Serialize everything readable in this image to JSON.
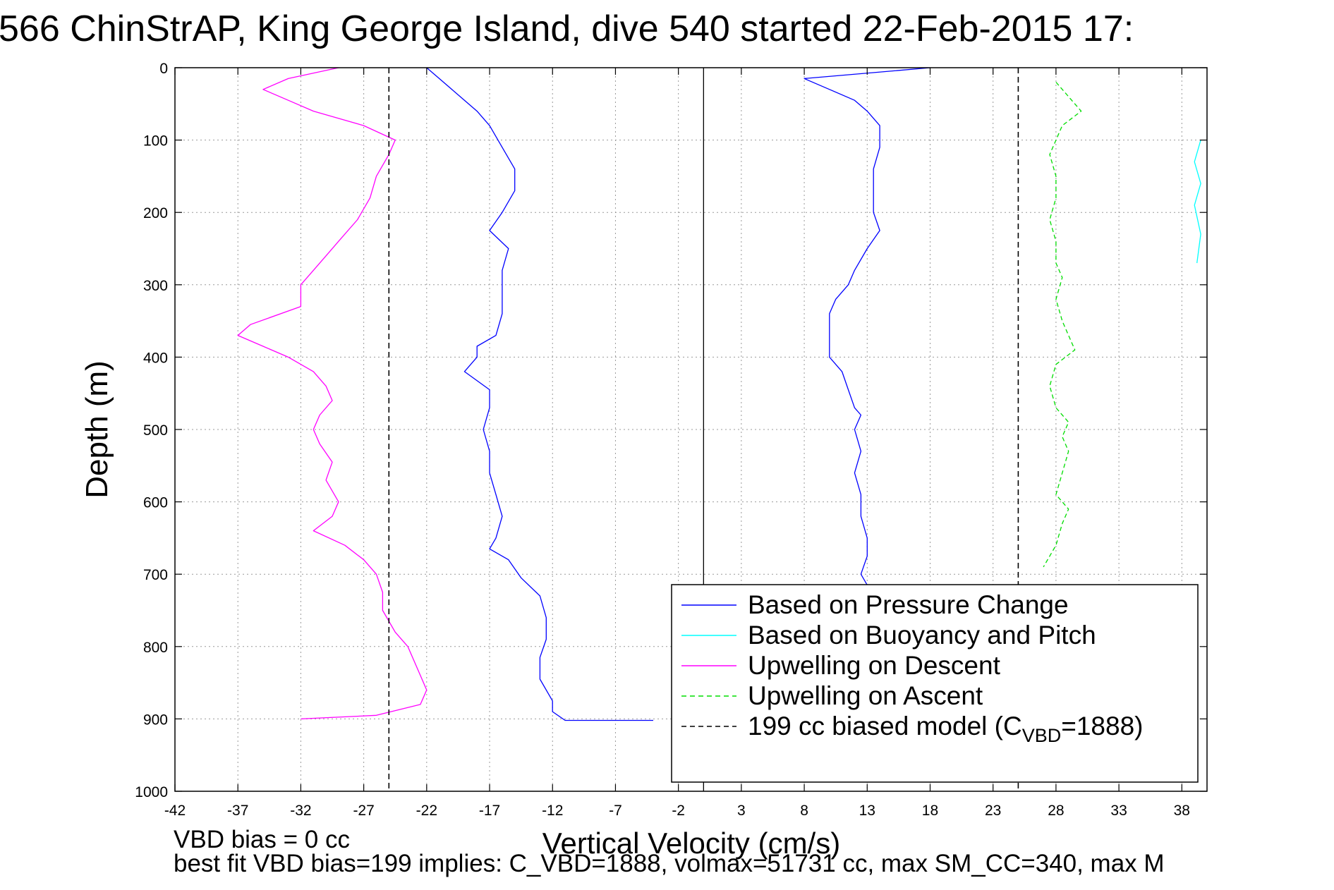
{
  "chart_data": {
    "type": "line",
    "title": "566 ChinStrAP, King George Island, dive 540 started 22-Feb-2015 17:",
    "xlabel": "Vertical Velocity (cm/s)",
    "ylabel": "Depth (m)",
    "xlim": [
      -42,
      40
    ],
    "ylim": [
      0,
      1000
    ],
    "y_inverted": true,
    "grid": true,
    "xticks": [
      "-42",
      "-37",
      "-32",
      "-27",
      "-22",
      "-17",
      "-12",
      "-7",
      "-2",
      "3",
      "8",
      "13",
      "18",
      "23",
      "28",
      "33",
      "38"
    ],
    "yticks": [
      "0",
      "100",
      "200",
      "300",
      "400",
      "500",
      "600",
      "700",
      "800",
      "900",
      "1000"
    ],
    "legend_position": "bottom-right",
    "series": [
      {
        "name": "Based on Pressure Change",
        "color": "#0000ff",
        "style": "solid",
        "points": [
          [
            -22,
            0
          ],
          [
            -21,
            15
          ],
          [
            -20,
            30
          ],
          [
            -19,
            45
          ],
          [
            -18,
            60
          ],
          [
            -17,
            80
          ],
          [
            -16,
            110
          ],
          [
            -15,
            140
          ],
          [
            -15,
            170
          ],
          [
            -16,
            200
          ],
          [
            -17,
            225
          ],
          [
            -15.5,
            250
          ],
          [
            -16,
            280
          ],
          [
            -16,
            310
          ],
          [
            -16,
            340
          ],
          [
            -16.5,
            370
          ],
          [
            -18,
            385
          ],
          [
            -18,
            400
          ],
          [
            -19,
            420
          ],
          [
            -17,
            445
          ],
          [
            -17,
            470
          ],
          [
            -17.5,
            500
          ],
          [
            -17,
            530
          ],
          [
            -17,
            560
          ],
          [
            -16.5,
            590
          ],
          [
            -16,
            620
          ],
          [
            -16.5,
            650
          ],
          [
            -17,
            665
          ],
          [
            -15.5,
            680
          ],
          [
            -14.5,
            705
          ],
          [
            -13,
            730
          ],
          [
            -12.5,
            760
          ],
          [
            -12.5,
            790
          ],
          [
            -13,
            815
          ],
          [
            -13,
            845
          ],
          [
            -12,
            875
          ],
          [
            -12,
            890
          ],
          [
            -11,
            902
          ],
          [
            -4,
            902
          ]
        ]
      },
      {
        "name": "Based on Pressure Change",
        "color": "#0000ff",
        "style": "solid",
        "points": [
          [
            18,
            0
          ],
          [
            8,
            15
          ],
          [
            10,
            30
          ],
          [
            12,
            45
          ],
          [
            13,
            60
          ],
          [
            14,
            80
          ],
          [
            14,
            110
          ],
          [
            13.5,
            140
          ],
          [
            13.5,
            170
          ],
          [
            13.5,
            200
          ],
          [
            14,
            225
          ],
          [
            13,
            250
          ],
          [
            12,
            280
          ],
          [
            11.5,
            300
          ],
          [
            10.5,
            320
          ],
          [
            10,
            340
          ],
          [
            10,
            360
          ],
          [
            10,
            380
          ],
          [
            10,
            400
          ],
          [
            11,
            420
          ],
          [
            11.5,
            445
          ],
          [
            12,
            470
          ],
          [
            12.5,
            480
          ],
          [
            12,
            500
          ],
          [
            12.5,
            530
          ],
          [
            12,
            560
          ],
          [
            12.5,
            590
          ],
          [
            12.5,
            620
          ],
          [
            13,
            650
          ],
          [
            13,
            675
          ],
          [
            12.5,
            700
          ],
          [
            13,
            715
          ]
        ]
      },
      {
        "name": "Based on Buoyancy and Pitch",
        "color": "#00ffff",
        "style": "solid",
        "points": [
          [
            39.5,
            100
          ],
          [
            39,
            130
          ],
          [
            39.5,
            160
          ],
          [
            39,
            190
          ],
          [
            39.5,
            230
          ],
          [
            39.2,
            270
          ]
        ]
      },
      {
        "name": "Upwelling on Descent",
        "color": "#ff00ff",
        "style": "solid",
        "points": [
          [
            -29,
            0
          ],
          [
            -33,
            15
          ],
          [
            -35,
            30
          ],
          [
            -33,
            45
          ],
          [
            -31,
            60
          ],
          [
            -27,
            80
          ],
          [
            -24.5,
            100
          ],
          [
            -25,
            120
          ],
          [
            -26,
            150
          ],
          [
            -26.5,
            180
          ],
          [
            -27.5,
            210
          ],
          [
            -29,
            240
          ],
          [
            -30,
            260
          ],
          [
            -31,
            280
          ],
          [
            -32,
            300
          ],
          [
            -32,
            330
          ],
          [
            -36,
            355
          ],
          [
            -37,
            370
          ],
          [
            -35,
            385
          ],
          [
            -33,
            400
          ],
          [
            -31,
            420
          ],
          [
            -30,
            440
          ],
          [
            -29.5,
            460
          ],
          [
            -30.5,
            480
          ],
          [
            -31,
            500
          ],
          [
            -30.5,
            520
          ],
          [
            -29.5,
            545
          ],
          [
            -30,
            570
          ],
          [
            -29,
            600
          ],
          [
            -29.5,
            620
          ],
          [
            -31,
            640
          ],
          [
            -28.5,
            660
          ],
          [
            -27,
            680
          ],
          [
            -26,
            700
          ],
          [
            -25.5,
            725
          ],
          [
            -25.5,
            750
          ],
          [
            -24.5,
            780
          ],
          [
            -23.5,
            800
          ],
          [
            -23,
            820
          ],
          [
            -22.5,
            840
          ],
          [
            -22,
            860
          ],
          [
            -22.5,
            880
          ],
          [
            -26,
            895
          ],
          [
            -32,
            900
          ]
        ]
      },
      {
        "name": "Upwelling on Ascent",
        "color": "#00dd00",
        "style": "dashed",
        "points": [
          [
            28,
            20
          ],
          [
            29,
            40
          ],
          [
            30,
            60
          ],
          [
            28.5,
            80
          ],
          [
            28,
            100
          ],
          [
            27.5,
            120
          ],
          [
            28,
            150
          ],
          [
            28,
            180
          ],
          [
            27.5,
            210
          ],
          [
            28,
            240
          ],
          [
            28,
            270
          ],
          [
            28.5,
            290
          ],
          [
            28,
            320
          ],
          [
            28.5,
            350
          ],
          [
            29,
            370
          ],
          [
            29.5,
            390
          ],
          [
            28,
            410
          ],
          [
            27.5,
            440
          ],
          [
            28,
            470
          ],
          [
            29,
            490
          ],
          [
            28.5,
            510
          ],
          [
            29,
            530
          ],
          [
            28.5,
            560
          ],
          [
            28,
            590
          ],
          [
            29,
            610
          ],
          [
            28.5,
            630
          ],
          [
            28,
            660
          ],
          [
            27,
            690
          ]
        ]
      },
      {
        "name": "199 cc biased model (C_VBD=1888)",
        "color": "#000000",
        "style": "dashed",
        "points": [
          [
            -25,
            0
          ],
          [
            -25,
            1000
          ]
        ]
      },
      {
        "name": "199 cc biased model (C_VBD=1888)",
        "color": "#000000",
        "style": "dashed",
        "points": [
          [
            25,
            0
          ],
          [
            25,
            1000
          ]
        ]
      }
    ],
    "reference_lines": [
      {
        "x": 0,
        "style": "solid",
        "color": "#000000"
      }
    ],
    "legend": [
      {
        "label": "Based on Pressure Change",
        "color": "#0000ff",
        "style": "solid"
      },
      {
        "label": "Based on Buoyancy and Pitch",
        "color": "#00ffff",
        "style": "solid"
      },
      {
        "label": "Upwelling on Descent",
        "color": "#ff00ff",
        "style": "solid"
      },
      {
        "label": "Upwelling on Ascent",
        "color": "#00dd00",
        "style": "dashed"
      },
      {
        "label": "199 cc biased model (C",
        "sub": "VBD",
        "suffix": "=1888)",
        "color": "#000000",
        "style": "dashed"
      }
    ],
    "annotations": [
      "VBD bias = 0 cc",
      "best fit VBD bias=199 implies: C_VBD=1888, volmax=51731 cc, max SM_CC=340, max M"
    ]
  }
}
